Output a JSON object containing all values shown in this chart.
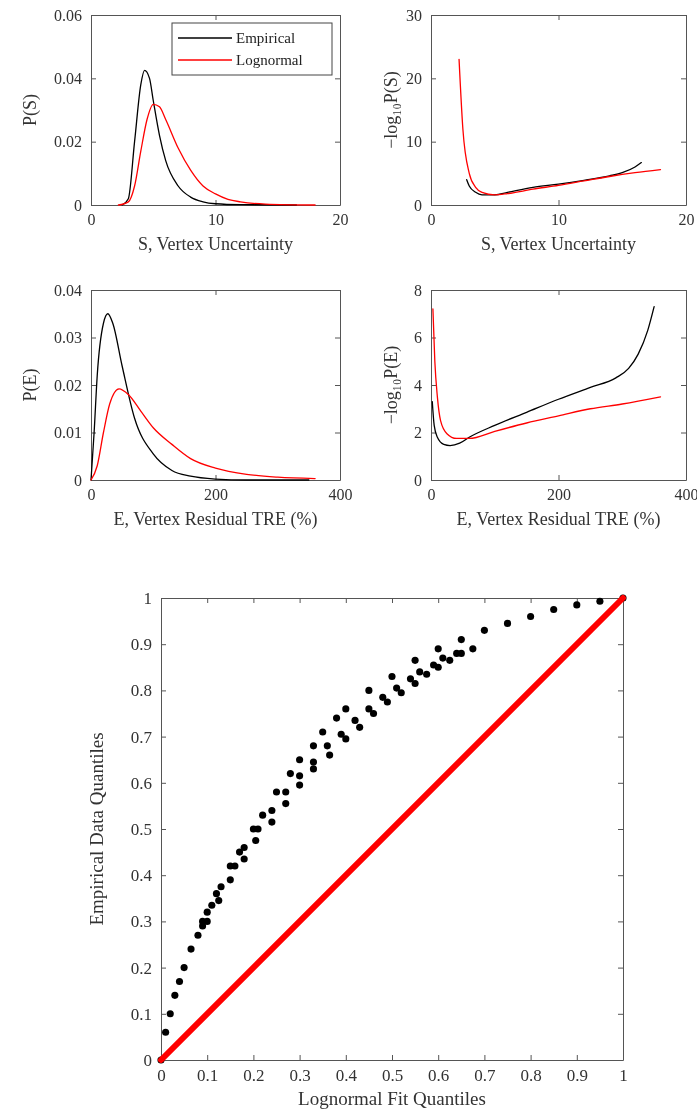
{
  "chart_data": [
    {
      "type": "line",
      "xlabel": "S, Vertex Uncertainty",
      "ylabel": "P(S)",
      "xlim": [
        0,
        20
      ],
      "xticks": [
        0,
        10,
        20
      ],
      "ylim": [
        0,
        0.06
      ],
      "yticks": [
        0,
        0.02,
        0.04,
        0.06
      ],
      "legend": "top right",
      "series": [
        {
          "name": "Empirical",
          "color": "#000000",
          "x": [
            2.5,
            3,
            3.5,
            4,
            4.3,
            4.7,
            5,
            5.5,
            6,
            7,
            8,
            9,
            10,
            12,
            16.5
          ],
          "values": [
            0,
            0.002,
            0.02,
            0.038,
            0.0425,
            0.04,
            0.033,
            0.022,
            0.014,
            0.006,
            0.0025,
            0.001,
            0.0004,
            0.0001,
            0
          ]
        },
        {
          "name": "Lognormal",
          "color": "#ff0000",
          "x": [
            2.2,
            3,
            3.5,
            4,
            4.5,
            5,
            5.5,
            6,
            7,
            8,
            9,
            10,
            11,
            12,
            14,
            18
          ],
          "values": [
            0,
            0.001,
            0.006,
            0.017,
            0.027,
            0.0318,
            0.031,
            0.027,
            0.018,
            0.011,
            0.006,
            0.0035,
            0.0018,
            0.001,
            0.0003,
            0
          ]
        }
      ]
    },
    {
      "type": "line",
      "xlabel": "S, Vertex Uncertainty",
      "ylabel": "−log₁₀P(S)",
      "xlim": [
        0,
        20
      ],
      "xticks": [
        0,
        10,
        20
      ],
      "ylim": [
        0,
        30
      ],
      "yticks": [
        0,
        10,
        20,
        30
      ],
      "series": [
        {
          "color": "#000000",
          "x": [
            2.8,
            3,
            3.5,
            4,
            5,
            6,
            8,
            10,
            12,
            14,
            15,
            16,
            16.5
          ],
          "values": [
            4,
            3,
            2,
            1.6,
            1.6,
            2,
            2.8,
            3.3,
            3.9,
            4.6,
            5.1,
            6,
            6.7
          ]
        },
        {
          "color": "#ff0000",
          "x": [
            2.2,
            2.5,
            3,
            3.5,
            4,
            5,
            6,
            8,
            10,
            12,
            14,
            16,
            18
          ],
          "values": [
            23,
            12,
            5,
            2.8,
            2,
            1.6,
            1.8,
            2.5,
            3.1,
            3.8,
            4.5,
            5.1,
            5.6
          ]
        }
      ]
    },
    {
      "type": "line",
      "xlabel": "E, Vertex Residual TRE (%)",
      "ylabel": "P(E)",
      "xlim": [
        0,
        400
      ],
      "xticks": [
        0,
        200,
        400
      ],
      "ylim": [
        0,
        0.04
      ],
      "yticks": [
        0,
        0.01,
        0.02,
        0.03,
        0.04
      ],
      "series": [
        {
          "color": "#000000",
          "x": [
            0,
            5,
            10,
            20,
            27,
            35,
            50,
            70,
            100,
            130,
            160,
            200,
            250,
            350
          ],
          "values": [
            0,
            0.01,
            0.022,
            0.033,
            0.035,
            0.033,
            0.024,
            0.013,
            0.0055,
            0.002,
            0.0008,
            0.0002,
            0,
            0
          ]
        },
        {
          "color": "#ff0000",
          "x": [
            0,
            10,
            20,
            30,
            45,
            60,
            80,
            100,
            130,
            160,
            200,
            250,
            300,
            360
          ],
          "values": [
            0,
            0.003,
            0.01,
            0.016,
            0.0192,
            0.018,
            0.0145,
            0.011,
            0.0075,
            0.0045,
            0.0025,
            0.0012,
            0.0006,
            0.0003
          ]
        }
      ]
    },
    {
      "type": "line",
      "xlabel": "E, Vertex Residual TRE (%)",
      "ylabel": "−log₁₀P(E)",
      "xlim": [
        0,
        400
      ],
      "xticks": [
        0,
        200,
        400
      ],
      "ylim": [
        0,
        8
      ],
      "yticks": [
        0,
        2,
        4,
        6,
        8
      ],
      "series": [
        {
          "color": "#000000",
          "x": [
            2,
            5,
            10,
            20,
            30,
            45,
            60,
            100,
            150,
            200,
            250,
            290,
            310,
            325,
            340,
            350
          ],
          "values": [
            3.3,
            2.3,
            1.8,
            1.5,
            1.45,
            1.55,
            1.8,
            2.3,
            2.85,
            3.4,
            3.9,
            4.3,
            4.7,
            5.3,
            6.3,
            7.3
          ]
        },
        {
          "color": "#ff0000",
          "x": [
            3,
            6,
            10,
            15,
            25,
            40,
            60,
            100,
            150,
            200,
            250,
            300,
            360
          ],
          "values": [
            7.2,
            5,
            3.5,
            2.5,
            1.95,
            1.75,
            1.75,
            2.05,
            2.4,
            2.7,
            3,
            3.2,
            3.5
          ]
        }
      ]
    },
    {
      "type": "scatter",
      "xlabel": "Lognormal Fit Quantiles",
      "ylabel": "Empirical Data Quantiles",
      "xlim": [
        0,
        1
      ],
      "xticks": [
        0,
        0.1,
        0.2,
        0.3,
        0.4,
        0.5,
        0.6,
        0.7,
        0.8,
        0.9,
        1
      ],
      "ylim": [
        0,
        1
      ],
      "yticks": [
        0,
        0.1,
        0.2,
        0.3,
        0.4,
        0.5,
        0.6,
        0.7,
        0.8,
        0.9,
        1
      ],
      "series": [
        {
          "color": "#000000",
          "marker": "circle",
          "x": [
            0,
            0.01,
            0.02,
            0.03,
            0.04,
            0.05,
            0.065,
            0.08,
            0.09,
            0.1,
            0.12,
            0.15,
            0.17,
            0.2,
            0.22,
            0.25,
            0.28,
            0.3,
            0.33,
            0.35,
            0.38,
            0.4,
            0.45,
            0.5,
            0.55,
            0.6,
            0.65,
            0.7,
            0.75,
            0.8,
            0.85,
            0.9,
            0.95,
            1,
            0.1,
            0.09,
            0.125,
            0.11,
            0.15,
            0.13,
            0.18,
            0.16,
            0.205,
            0.18,
            0.24,
            0.21,
            0.27,
            0.24,
            0.3,
            0.27,
            0.33,
            0.3,
            0.365,
            0.33,
            0.4,
            0.36,
            0.43,
            0.39,
            0.46,
            0.42,
            0.49,
            0.45,
            0.52,
            0.48,
            0.55,
            0.51,
            0.575,
            0.54,
            0.6,
            0.56,
            0.625,
            0.59,
            0.65,
            0.61,
            0.675,
            0.64
          ],
          "values": [
            0,
            0.06,
            0.1,
            0.14,
            0.17,
            0.2,
            0.24,
            0.27,
            0.3,
            0.32,
            0.36,
            0.42,
            0.45,
            0.5,
            0.53,
            0.58,
            0.62,
            0.65,
            0.68,
            0.71,
            0.74,
            0.76,
            0.8,
            0.83,
            0.865,
            0.89,
            0.91,
            0.93,
            0.945,
            0.96,
            0.975,
            0.985,
            0.993,
            1,
            0.3,
            0.29,
            0.345,
            0.335,
            0.39,
            0.375,
            0.435,
            0.42,
            0.475,
            0.46,
            0.515,
            0.5,
            0.555,
            0.54,
            0.595,
            0.58,
            0.63,
            0.615,
            0.66,
            0.645,
            0.695,
            0.68,
            0.72,
            0.705,
            0.75,
            0.735,
            0.775,
            0.76,
            0.795,
            0.785,
            0.815,
            0.805,
            0.835,
            0.825,
            0.85,
            0.84,
            0.865,
            0.855,
            0.88,
            0.87,
            0.89,
            0.88
          ]
        },
        {
          "type": "line",
          "color": "#ff0000",
          "x": [
            0,
            1
          ],
          "values": [
            0,
            1
          ]
        }
      ]
    }
  ]
}
